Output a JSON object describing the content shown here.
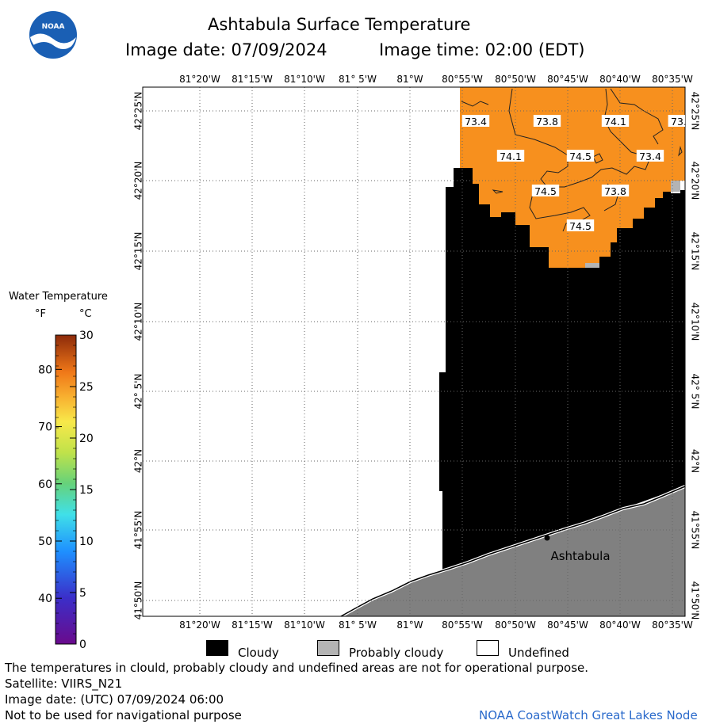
{
  "header": {
    "title": "Ashtabula Surface Temperature",
    "image_date_label": "Image date: 07/09/2024",
    "image_time_label": "Image time: 02:00 (EDT)",
    "logo_text": "NOAA"
  },
  "map": {
    "lon_labels": [
      "81°20'W",
      "81°15'W",
      "81°10'W",
      "81° 5'W",
      "81°W",
      "80°55'W",
      "80°50'W",
      "80°45'W",
      "80°40'W",
      "80°35'W"
    ],
    "lat_labels": [
      "42°25'N",
      "42°20'N",
      "42°15'N",
      "42°10'N",
      "42° 5'N",
      "42°N",
      "41°55'N",
      "41°50'N"
    ],
    "place_label": "Ashtabula",
    "contour_labels": [
      "73.4",
      "73.8",
      "74.1",
      "73.",
      "74.1",
      "74.5",
      "73.4",
      "74.5",
      "73.8",
      "74.5"
    ],
    "colors": {
      "warm_water": "#f7901e",
      "cloud": "#000000",
      "land": "#808080",
      "probably_cloudy": "#b4b4b4"
    }
  },
  "colorbar": {
    "title": "Water Temperature",
    "unit_f": "°F",
    "unit_c": "°C",
    "f_ticks": [
      "80",
      "70",
      "60",
      "50",
      "40"
    ],
    "c_ticks": [
      "30",
      "25",
      "20",
      "15",
      "10",
      "5",
      "0"
    ]
  },
  "key": {
    "cloudy": "Cloudy",
    "probably_cloudy": "Probably cloudy",
    "undefined": "Undefined"
  },
  "footer": {
    "disclaimer": "The temperatures in clould, probably cloudy and undefined areas are not for operational purpose.",
    "satellite": "Satellite: VIIRS_N21",
    "utc_date": "Image date: (UTC) 07/09/2024  06:00",
    "nav_warning": "Not to be used for navigational purpose",
    "credit": "NOAA CoastWatch Great Lakes Node"
  }
}
